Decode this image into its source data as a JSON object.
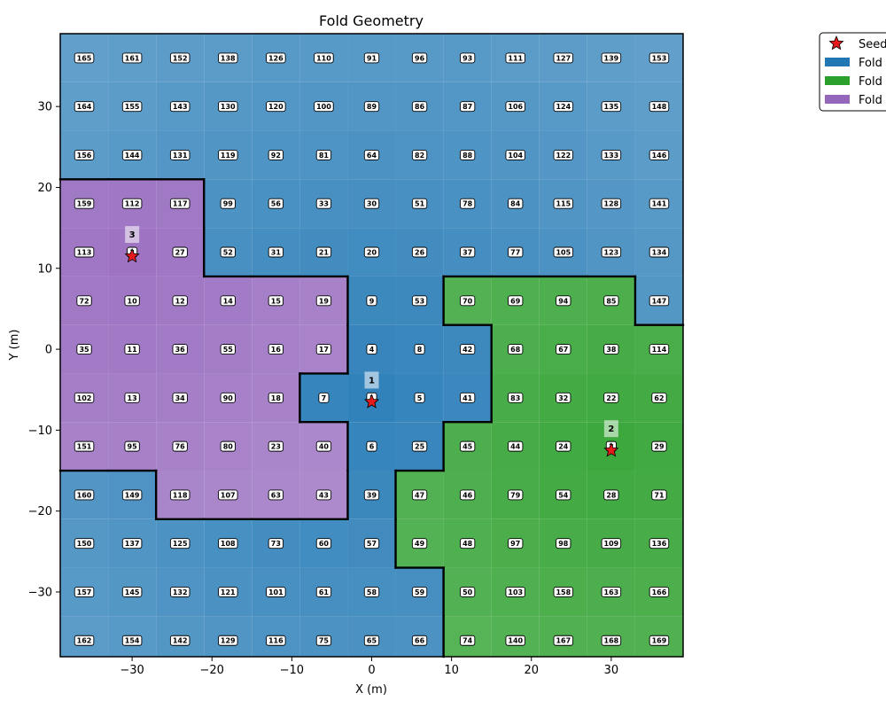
{
  "chart_data": {
    "type": "heatmap",
    "title": "Fold Geometry",
    "xlabel": "X (m)",
    "ylabel": "Y (m)",
    "xlim": [
      -39,
      39
    ],
    "ylim": [
      -38,
      39
    ],
    "xticks": [
      -30,
      -20,
      -10,
      0,
      10,
      20,
      30
    ],
    "yticks": [
      -30,
      -20,
      -10,
      0,
      10,
      20,
      30
    ],
    "x_centers": [
      -36,
      -30,
      -24,
      -18,
      -12,
      -6,
      0,
      6,
      12,
      18,
      24,
      30,
      36
    ],
    "y_centers": [
      36,
      30,
      24,
      18,
      12,
      6,
      0,
      -6,
      -12,
      -18,
      -24,
      -30,
      -36
    ],
    "cell_ids": [
      [
        165,
        161,
        152,
        138,
        126,
        110,
        91,
        96,
        93,
        111,
        127,
        139,
        153
      ],
      [
        164,
        155,
        143,
        130,
        120,
        100,
        89,
        86,
        87,
        106,
        124,
        135,
        148
      ],
      [
        156,
        144,
        131,
        119,
        92,
        81,
        64,
        82,
        88,
        104,
        122,
        133,
        146
      ],
      [
        159,
        112,
        117,
        99,
        56,
        33,
        30,
        51,
        78,
        84,
        115,
        128,
        141
      ],
      [
        113,
        3,
        27,
        52,
        31,
        21,
        20,
        26,
        37,
        77,
        105,
        123,
        134
      ],
      [
        72,
        10,
        12,
        14,
        15,
        19,
        9,
        53,
        70,
        69,
        94,
        85,
        147
      ],
      [
        35,
        11,
        36,
        55,
        16,
        17,
        4,
        8,
        42,
        68,
        67,
        38,
        114
      ],
      [
        102,
        13,
        34,
        90,
        18,
        7,
        1,
        5,
        41,
        83,
        32,
        22,
        62
      ],
      [
        151,
        95,
        76,
        80,
        23,
        40,
        6,
        25,
        45,
        44,
        24,
        2,
        29
      ],
      [
        160,
        149,
        118,
        107,
        63,
        43,
        39,
        47,
        46,
        79,
        54,
        28,
        71
      ],
      [
        150,
        137,
        125,
        108,
        73,
        60,
        57,
        49,
        48,
        97,
        98,
        109,
        136
      ],
      [
        157,
        145,
        132,
        121,
        101,
        61,
        58,
        59,
        50,
        103,
        158,
        163,
        166
      ],
      [
        162,
        154,
        142,
        129,
        116,
        75,
        65,
        66,
        74,
        140,
        167,
        168,
        169
      ]
    ],
    "fold_assignment": [
      [
        1,
        1,
        1,
        1,
        1,
        1,
        1,
        1,
        1,
        1,
        1,
        1,
        1
      ],
      [
        1,
        1,
        1,
        1,
        1,
        1,
        1,
        1,
        1,
        1,
        1,
        1,
        1
      ],
      [
        1,
        1,
        1,
        1,
        1,
        1,
        1,
        1,
        1,
        1,
        1,
        1,
        1
      ],
      [
        3,
        3,
        3,
        1,
        1,
        1,
        1,
        1,
        1,
        1,
        1,
        1,
        1
      ],
      [
        3,
        3,
        3,
        1,
        1,
        1,
        1,
        1,
        1,
        1,
        1,
        1,
        1
      ],
      [
        3,
        3,
        3,
        3,
        3,
        3,
        1,
        1,
        2,
        2,
        2,
        2,
        1
      ],
      [
        3,
        3,
        3,
        3,
        3,
        3,
        1,
        1,
        1,
        2,
        2,
        2,
        2
      ],
      [
        3,
        3,
        3,
        3,
        3,
        1,
        1,
        1,
        1,
        2,
        2,
        2,
        2
      ],
      [
        3,
        3,
        3,
        3,
        3,
        3,
        1,
        1,
        2,
        2,
        2,
        2,
        2
      ],
      [
        1,
        1,
        3,
        3,
        3,
        3,
        1,
        2,
        2,
        2,
        2,
        2,
        2
      ],
      [
        1,
        1,
        1,
        1,
        1,
        1,
        1,
        2,
        2,
        2,
        2,
        2,
        2
      ],
      [
        1,
        1,
        1,
        1,
        1,
        1,
        1,
        1,
        2,
        2,
        2,
        2,
        2
      ],
      [
        1,
        1,
        1,
        1,
        1,
        1,
        1,
        1,
        2,
        2,
        2,
        2,
        2
      ]
    ],
    "seeds": [
      {
        "label": "1",
        "x": 0,
        "y": -6.5
      },
      {
        "label": "2",
        "x": 30,
        "y": -12.5
      },
      {
        "label": "3",
        "x": -30,
        "y": 11.5
      }
    ],
    "legend": {
      "placement": "outside top-right",
      "entries": [
        {
          "label": "Seed",
          "marker": "star",
          "color": "#e41a1c"
        },
        {
          "label": "Fold",
          "marker": "patch",
          "color": "#1f77b4"
        },
        {
          "label": "Fold",
          "marker": "patch",
          "color": "#2ca02c"
        },
        {
          "label": "Fold",
          "marker": "patch",
          "color": "#9467bd"
        }
      ]
    },
    "fold_colors": {
      "1": "#1f77b4",
      "2": "#2ca02c",
      "3": "#9467bd"
    },
    "grid": false
  }
}
